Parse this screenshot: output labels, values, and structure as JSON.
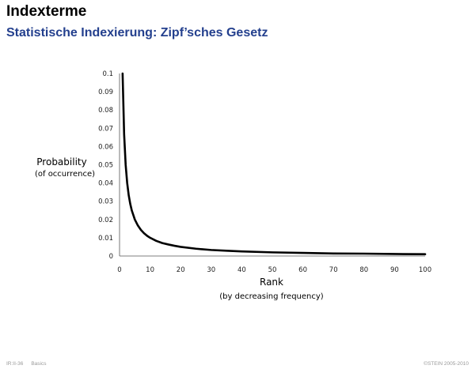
{
  "slide": {
    "title": "Indexterme",
    "subtitle": "Statistische Indexierung: Zipf’sches Gesetz"
  },
  "footer": {
    "page": "IR:II-36",
    "section": "Basics",
    "copyright": "©STEIN 2005-2010"
  },
  "chart_data": {
    "type": "line",
    "ylabel": "Probability",
    "ylabel_sub": "(of occurrence)",
    "xlabel": "Rank",
    "xlabel_sub": "(by decreasing frequency)",
    "xlim": [
      0,
      100
    ],
    "ylim": [
      0,
      0.1
    ],
    "x_ticks": [
      0,
      10,
      20,
      30,
      40,
      50,
      60,
      70,
      80,
      90,
      100
    ],
    "y_ticks": [
      "0",
      "0.01",
      "0.02",
      "0.03",
      "0.04",
      "0.05",
      "0.06",
      "0.07",
      "0.08",
      "0.09",
      "0.1"
    ],
    "grid": false,
    "line_color": "#000000",
    "series": [
      {
        "x": [
          1,
          1.5,
          2,
          2.5,
          3,
          3.5,
          4,
          5,
          6,
          7,
          8,
          9,
          10,
          12,
          14,
          16,
          18,
          20,
          25,
          30,
          35,
          40,
          50,
          60,
          70,
          80,
          90,
          100
        ],
        "values": [
          0.1,
          0.0667,
          0.05,
          0.04,
          0.0333,
          0.0286,
          0.025,
          0.02,
          0.0167,
          0.0143,
          0.0125,
          0.0111,
          0.01,
          0.0083,
          0.0071,
          0.0063,
          0.0056,
          0.005,
          0.004,
          0.0033,
          0.0029,
          0.0025,
          0.002,
          0.0017,
          0.0014,
          0.0013,
          0.0011,
          0.001
        ]
      }
    ]
  }
}
